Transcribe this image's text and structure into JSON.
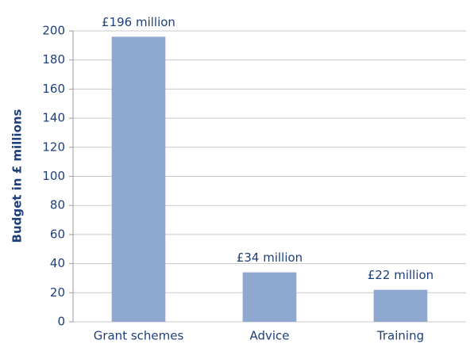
{
  "chart_data": {
    "type": "bar",
    "y_axis_label": "Budget in £ millions",
    "categories": [
      "Grant schemes",
      "Advice",
      "Training"
    ],
    "values": [
      196,
      34,
      22
    ],
    "value_labels": [
      "£196 million",
      "£34 million",
      "£22 million"
    ],
    "color": "#8fa8cf",
    "ylim": [
      0,
      200
    ],
    "yticks": [
      0,
      20,
      40,
      60,
      80,
      100,
      120,
      140,
      160,
      180,
      200
    ],
    "grid": true
  }
}
